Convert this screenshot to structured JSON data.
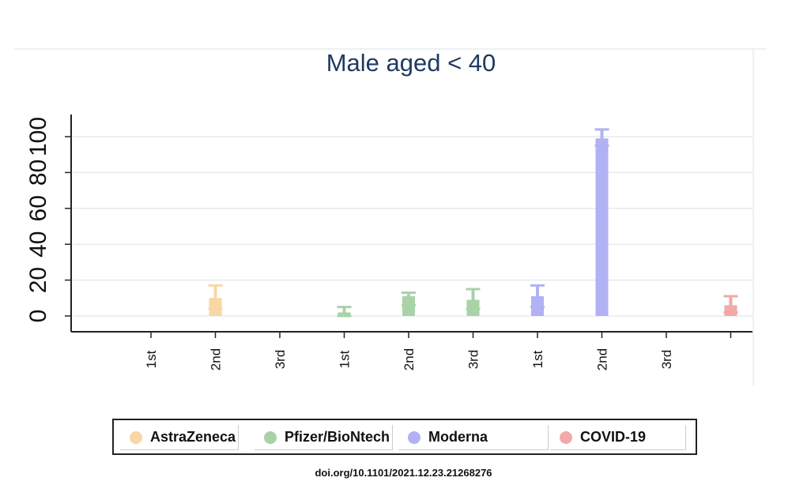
{
  "chart_data": {
    "type": "bar",
    "title": "Male aged < 40",
    "ylim": [
      -10,
      112
    ],
    "yticks": [
      0,
      20,
      40,
      60,
      80,
      100
    ],
    "grid": true,
    "legend_position": "bottom",
    "bars": [
      {
        "category": "2nd",
        "series": "AstraZeneca",
        "value": 10,
        "ci": [
          4,
          17
        ]
      },
      {
        "category": "1st",
        "series": "Pfizer/BioNtech",
        "value": 2,
        "ci": [
          0,
          5
        ]
      },
      {
        "category": "2nd",
        "series": "Pfizer/BioNtech",
        "value": 11,
        "ci": [
          6,
          13
        ]
      },
      {
        "category": "3rd",
        "series": "Pfizer/BioNtech",
        "value": 9,
        "ci": [
          4,
          15
        ]
      },
      {
        "category": "1st",
        "series": "Moderna",
        "value": 11,
        "ci": [
          5,
          17
        ]
      },
      {
        "category": "2nd",
        "series": "Moderna",
        "value": 99,
        "ci": [
          95,
          104
        ]
      },
      {
        "category": "",
        "series": "COVID-19",
        "value": 6,
        "ci": [
          2,
          11
        ]
      }
    ],
    "x_labels": [
      "1st",
      "2nd",
      "3rd",
      "1st",
      "2nd",
      "3rd",
      "1st",
      "2nd",
      "3rd",
      ""
    ],
    "series": [
      {
        "name": "AstraZeneca",
        "color": "#f8d7a4"
      },
      {
        "name": "Pfizer/BioNtech",
        "color": "#a9d3a7"
      },
      {
        "name": "Moderna",
        "color": "#b1b1f3"
      },
      {
        "name": "COVID-19",
        "color": "#f2a9a9"
      }
    ]
  },
  "footer": {
    "doi": "doi.org/10.1101/2021.12.23.21268276"
  }
}
